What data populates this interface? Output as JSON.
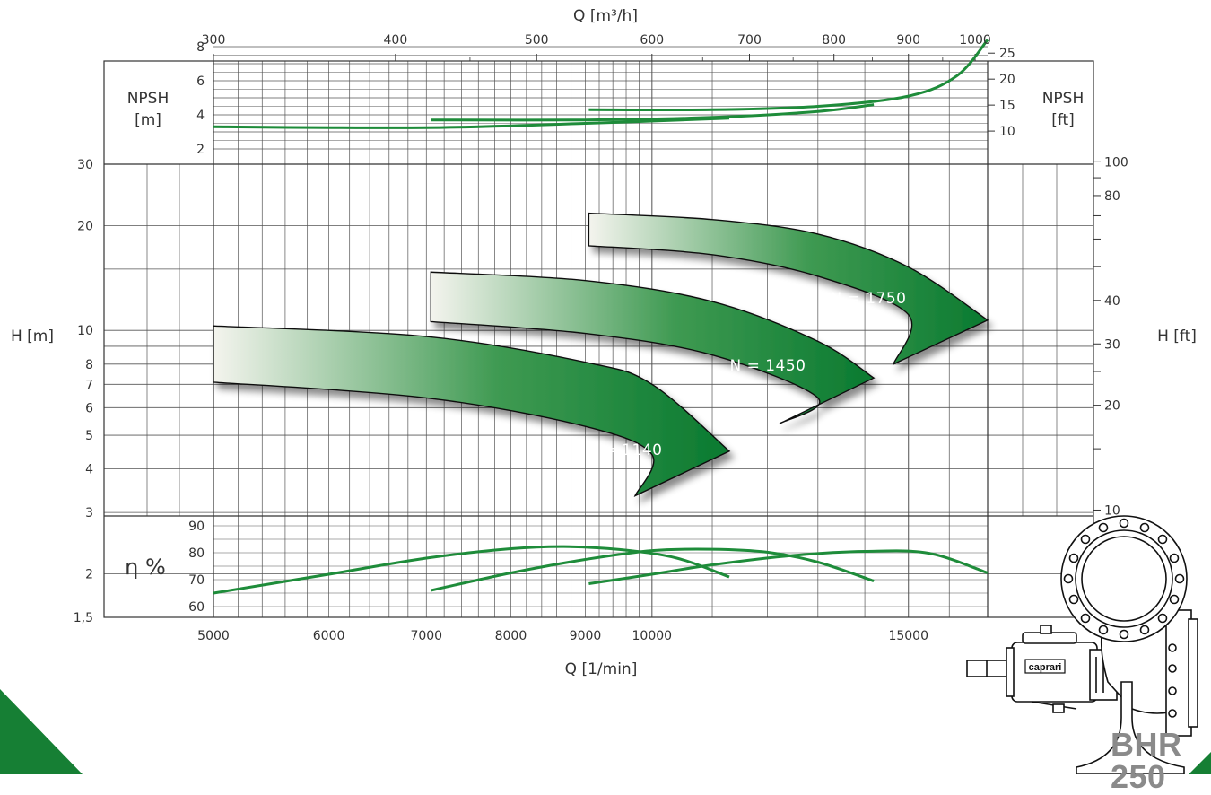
{
  "chart_data": {
    "type": "line",
    "chart_kind": "pump performance curves",
    "scale": "log-log",
    "grid": true,
    "x_axis_top": {
      "label": "Q [m³/h]",
      "ticks": [
        "300",
        "400",
        "500",
        "600",
        "700",
        "800",
        "900",
        "1000"
      ],
      "range": [
        300,
        1020
      ]
    },
    "x_axis_bottom": {
      "label": "Q [1/min]",
      "ticks": [
        "5000",
        "6000",
        "7000",
        "8000",
        "9000",
        "10000",
        "15000"
      ],
      "range": [
        5000,
        17000
      ]
    },
    "head_panel": {
      "ylabel_left": "H [m]",
      "ylabel_right": "H [ft]",
      "ylim_m": [
        1.5,
        30
      ],
      "ticks_left": [
        "30",
        "20",
        "10",
        "8",
        "7",
        "6",
        "5",
        "4",
        "3",
        "2",
        "1,5"
      ],
      "ticks_right": [
        "100",
        "80",
        "40",
        "30",
        "20",
        "10"
      ],
      "bands": [
        {
          "name": "N = 1140",
          "q_from": 5000,
          "q_to": 11300,
          "upper_h": [
            [
              5000,
              10.3
            ],
            [
              7000,
              9.6
            ],
            [
              9000,
              8.1
            ],
            [
              10000,
              7.0
            ],
            [
              11300,
              4.5
            ]
          ],
          "lower_h": [
            [
              5000,
              7.1
            ],
            [
              7000,
              6.4
            ],
            [
              9000,
              5.3
            ],
            [
              10000,
              4.4
            ],
            [
              11300,
              3.35
            ]
          ]
        },
        {
          "name": "N = 1450",
          "q_from": 7050,
          "q_to": 14200,
          "upper_h": [
            [
              7050,
              14.7
            ],
            [
              9000,
              13.9
            ],
            [
              11000,
              12.1
            ],
            [
              13000,
              9.3
            ],
            [
              14200,
              7.3
            ]
          ],
          "lower_h": [
            [
              7050,
              10.6
            ],
            [
              9000,
              9.8
            ],
            [
              11000,
              8.5
            ],
            [
              13000,
              6.4
            ],
            [
              14200,
              5.4
            ]
          ]
        },
        {
          "name": "N = 1750",
          "q_from": 9050,
          "q_to": 17000,
          "upper_h": [
            [
              9050,
              21.7
            ],
            [
              11000,
              20.8
            ],
            [
              13000,
              18.9
            ],
            [
              15000,
              15.2
            ],
            [
              17000,
              10.7
            ]
          ],
          "lower_h": [
            [
              9050,
              17.5
            ],
            [
              11000,
              16.5
            ],
            [
              13000,
              14.3
            ],
            [
              15000,
              11.1
            ],
            [
              17000,
              8.0
            ]
          ]
        }
      ]
    },
    "npsh_panel": {
      "ylabel_left": "NPSH\n[m]",
      "ylabel_right": "NPSH\n[ft]",
      "ticks_left": [
        "8",
        "6",
        "4",
        "2"
      ],
      "ticks_right": [
        "25",
        "20",
        "15",
        "10"
      ],
      "series": [
        {
          "q": [
            5000,
            7000,
            9000,
            11300
          ],
          "npsh_m": [
            3.3,
            3.25,
            3.5,
            3.8
          ]
        },
        {
          "q": [
            7050,
            9000,
            11000,
            13000,
            14200
          ],
          "npsh_m": [
            3.7,
            3.7,
            3.85,
            4.2,
            4.6
          ]
        },
        {
          "q": [
            9050,
            11000,
            13000,
            15000,
            16200,
            17000
          ],
          "npsh_m": [
            4.3,
            4.3,
            4.5,
            5.1,
            6.3,
            8.4
          ]
        }
      ]
    },
    "efficiency_panel": {
      "ylabel": "η %",
      "ticks": [
        "90",
        "80",
        "70",
        "60"
      ],
      "series": [
        {
          "q": [
            5000,
            6000,
            7000,
            8000,
            8700,
            9500,
            10400,
            11300
          ],
          "eta": [
            65,
            72,
            78,
            81.5,
            82.3,
            81.2,
            78,
            71
          ]
        },
        {
          "q": [
            7050,
            8000,
            9000,
            10000,
            11000,
            12000,
            13000,
            14200
          ],
          "eta": [
            66,
            72.5,
            77.5,
            80.8,
            81.3,
            80.2,
            76.5,
            69.5
          ]
        },
        {
          "q": [
            9050,
            10000,
            11000,
            12500,
            14000,
            15500,
            17000
          ],
          "eta": [
            68.5,
            72,
            75.5,
            79,
            80.5,
            79.8,
            72.5
          ]
        }
      ]
    },
    "colors": {
      "curve": "#1e8c3a",
      "band_dark": "#0a7a30",
      "band_light": "#f4f4ee",
      "grid": "#555555",
      "corner": "#167f34"
    }
  },
  "brand": {
    "nameplate": "caprari",
    "product_title": "BHR 250"
  }
}
